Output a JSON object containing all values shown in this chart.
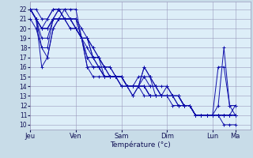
{
  "title": "",
  "xlabel": "Température (°c)",
  "xlim": [
    0,
    116
  ],
  "ylim": [
    9.5,
    22.8
  ],
  "yticks": [
    10,
    11,
    12,
    13,
    14,
    15,
    16,
    17,
    18,
    19,
    20,
    21,
    22
  ],
  "day_ticks": [
    0,
    24,
    48,
    72,
    96,
    108
  ],
  "day_labels": [
    "Jeu",
    "Ven",
    "Sam",
    "Dim",
    "Lun",
    "Ma"
  ],
  "bg_color": "#c8dce8",
  "plot_bg_color": "#ddeef8",
  "line_color": "#1010aa",
  "grid_color": "#9999bb",
  "series": [
    [
      0,
      22,
      3,
      22,
      6,
      21,
      9,
      21,
      12,
      22,
      15,
      22,
      18,
      21,
      21,
      20,
      24,
      20,
      27,
      19,
      30,
      19,
      33,
      18,
      36,
      17,
      39,
      16,
      42,
      16,
      45,
      15,
      48,
      15,
      51,
      14,
      54,
      14,
      57,
      14,
      60,
      14,
      63,
      13,
      66,
      13,
      69,
      13,
      72,
      13,
      75,
      13,
      78,
      13,
      81,
      12,
      84,
      12,
      87,
      11,
      90,
      11,
      93,
      11,
      96,
      11,
      99,
      11,
      102,
      11,
      105,
      11,
      108,
      11
    ],
    [
      0,
      22,
      3,
      21,
      6,
      20,
      9,
      21,
      12,
      22,
      15,
      22,
      18,
      21,
      21,
      21,
      24,
      21,
      27,
      20,
      30,
      19,
      33,
      18,
      36,
      17,
      39,
      16,
      42,
      15,
      45,
      15,
      48,
      15,
      51,
      14,
      54,
      14,
      57,
      14,
      60,
      15,
      63,
      14,
      66,
      14,
      69,
      13,
      72,
      13,
      75,
      13,
      78,
      13,
      81,
      12,
      84,
      12,
      87,
      11,
      90,
      11,
      93,
      11,
      96,
      11,
      99,
      11,
      102,
      11,
      105,
      11,
      108,
      11
    ],
    [
      0,
      22,
      3,
      21,
      6,
      20,
      9,
      20,
      12,
      21,
      15,
      21,
      18,
      21,
      21,
      21,
      24,
      20,
      27,
      19,
      30,
      19,
      33,
      17,
      36,
      16,
      39,
      16,
      42,
      15,
      45,
      15,
      48,
      14,
      51,
      14,
      54,
      13,
      57,
      14,
      60,
      16,
      63,
      15,
      66,
      14,
      69,
      14,
      72,
      14,
      75,
      13,
      78,
      13,
      81,
      12,
      84,
      12,
      87,
      11,
      90,
      11,
      93,
      11,
      96,
      11,
      99,
      12,
      102,
      18,
      105,
      12,
      108,
      11
    ],
    [
      0,
      22,
      3,
      21,
      6,
      20,
      9,
      20,
      12,
      21,
      15,
      21,
      18,
      21,
      21,
      20,
      24,
      20,
      27,
      19,
      30,
      17,
      33,
      17,
      36,
      17,
      39,
      15,
      42,
      15,
      45,
      15,
      48,
      14,
      51,
      14,
      54,
      13,
      57,
      14,
      60,
      16,
      63,
      15,
      66,
      13,
      69,
      13,
      72,
      13,
      75,
      12,
      78,
      12,
      81,
      12,
      84,
      12,
      87,
      11,
      90,
      11,
      93,
      11,
      96,
      11,
      99,
      16,
      102,
      16,
      105,
      12,
      108,
      12
    ],
    [
      0,
      22,
      3,
      21,
      6,
      20,
      9,
      20,
      12,
      21,
      15,
      21,
      18,
      22,
      21,
      22,
      24,
      22,
      27,
      19,
      30,
      19,
      33,
      17,
      36,
      17,
      39,
      16,
      42,
      16,
      45,
      15,
      48,
      14,
      51,
      14,
      54,
      14,
      57,
      14,
      60,
      14,
      63,
      14,
      66,
      14,
      69,
      13,
      72,
      14,
      75,
      13,
      78,
      13,
      81,
      12,
      84,
      12,
      87,
      11,
      90,
      11,
      93,
      11,
      96,
      11,
      99,
      11,
      102,
      11,
      105,
      11,
      108,
      11
    ],
    [
      0,
      22,
      3,
      21,
      6,
      19,
      9,
      19,
      12,
      21,
      15,
      22,
      18,
      22,
      21,
      21,
      24,
      21,
      27,
      19,
      30,
      18,
      33,
      17,
      36,
      16,
      39,
      15,
      42,
      15,
      45,
      15,
      48,
      15,
      51,
      14,
      54,
      14,
      57,
      15,
      60,
      15,
      63,
      15,
      66,
      14,
      69,
      13,
      72,
      13,
      75,
      13,
      78,
      13,
      81,
      12,
      84,
      12,
      87,
      11,
      90,
      11,
      93,
      11,
      96,
      11,
      99,
      11,
      102,
      11,
      105,
      11,
      108,
      11
    ],
    [
      0,
      22,
      3,
      21,
      6,
      18,
      9,
      18,
      12,
      21,
      15,
      22,
      18,
      21,
      21,
      21,
      24,
      20,
      27,
      19,
      30,
      17,
      33,
      16,
      36,
      16,
      39,
      15,
      42,
      15,
      45,
      15,
      48,
      15,
      51,
      14,
      54,
      14,
      57,
      14,
      60,
      14,
      63,
      13,
      66,
      13,
      69,
      13,
      72,
      13,
      75,
      13,
      78,
      13,
      81,
      12,
      84,
      12,
      87,
      11,
      90,
      11,
      93,
      11,
      96,
      11,
      99,
      11,
      102,
      11,
      105,
      11,
      108,
      11
    ],
    [
      0,
      22,
      3,
      21,
      6,
      16,
      9,
      17,
      12,
      20,
      15,
      21,
      18,
      21,
      21,
      21,
      24,
      21,
      27,
      19,
      30,
      16,
      33,
      16,
      36,
      16,
      39,
      15,
      42,
      15,
      45,
      15,
      48,
      15,
      51,
      14,
      54,
      14,
      57,
      14,
      60,
      14,
      63,
      13,
      66,
      13,
      69,
      13,
      72,
      13,
      75,
      13,
      78,
      12,
      81,
      12,
      84,
      12,
      87,
      11,
      90,
      11,
      93,
      11,
      96,
      11,
      99,
      11,
      102,
      11,
      105,
      11,
      108,
      12
    ],
    [
      0,
      21,
      3,
      20,
      6,
      18,
      9,
      17,
      12,
      20,
      15,
      21,
      18,
      21,
      21,
      21,
      24,
      20,
      27,
      19,
      30,
      16,
      33,
      15,
      36,
      15,
      39,
      15,
      42,
      15,
      45,
      15,
      48,
      15,
      51,
      14,
      54,
      14,
      57,
      14,
      60,
      13,
      63,
      13,
      66,
      13,
      69,
      13,
      72,
      13,
      75,
      13,
      78,
      12,
      81,
      12,
      84,
      12,
      87,
      11,
      90,
      11,
      93,
      11,
      96,
      11,
      99,
      11,
      102,
      10,
      105,
      10,
      108,
      10
    ]
  ]
}
